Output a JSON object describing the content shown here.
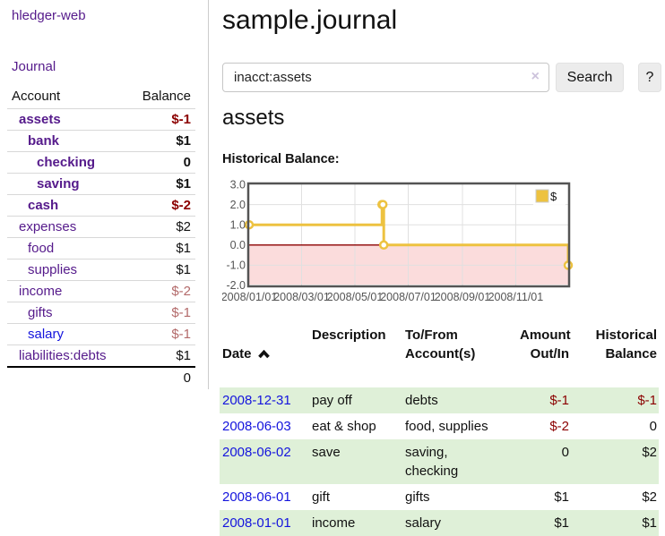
{
  "app": {
    "title": "hledger-web"
  },
  "sidebar": {
    "nav_journal": "Journal",
    "accounts": {
      "col_account": "Account",
      "col_balance": "Balance",
      "rows": [
        {
          "account": "assets",
          "balance": "$-1"
        },
        {
          "account": "bank",
          "balance": "$1"
        },
        {
          "account": "checking",
          "balance": "0"
        },
        {
          "account": "saving",
          "balance": "$1"
        },
        {
          "account": "cash",
          "balance": "$-2"
        },
        {
          "account": "expenses",
          "balance": "$2"
        },
        {
          "account": "food",
          "balance": "$1"
        },
        {
          "account": "supplies",
          "balance": "$1"
        },
        {
          "account": "income",
          "balance": "$-2"
        },
        {
          "account": "gifts",
          "balance": "$-1"
        },
        {
          "account": "salary",
          "balance": "$-1"
        },
        {
          "account": "liabilities:debts",
          "balance": "$1"
        }
      ],
      "total": "0"
    }
  },
  "header": {
    "title": "sample.journal"
  },
  "search": {
    "value": "inacct:assets",
    "clear_icon": "×",
    "search_label": "Search",
    "help_label": "?"
  },
  "account_page": {
    "heading": "assets",
    "chart_label": "Historical Balance:"
  },
  "chart_data": {
    "type": "line",
    "title": "Historical Balance:",
    "step": true,
    "series": [
      {
        "name": "$",
        "points": [
          {
            "date": "2008-01-01",
            "value": 1
          },
          {
            "date": "2008-06-01",
            "value": 2
          },
          {
            "date": "2008-06-02",
            "value": 2
          },
          {
            "date": "2008-06-03",
            "value": 0
          },
          {
            "date": "2008-12-31",
            "value": -1
          }
        ]
      }
    ],
    "x_range": [
      "2008-01-01",
      "2008-12-31"
    ],
    "ylim": [
      -2,
      3
    ],
    "y_ticks": [
      "3.0",
      "2.0",
      "1.0",
      "0.0",
      "-1.0",
      "-2.0"
    ],
    "x_ticks": [
      "2008/01/01",
      "2008/03/01",
      "2008/05/01",
      "2008/07/01",
      "2008/09/01",
      "2008/11/01"
    ],
    "legend": {
      "label": "$",
      "position": "top-right"
    },
    "grid": true,
    "colors": {
      "line": "#edc240",
      "negative_region": "#fbdcdc",
      "zero_line": "#8b0000",
      "gridline": "#e0e0e0",
      "border": "#545454"
    }
  },
  "register": {
    "headers": {
      "date": "Date",
      "description": "Description",
      "to_from": "To/From\nAccount(s)",
      "amount": "Amount\nOut/In",
      "balance": "Historical\nBalance"
    },
    "rows": [
      {
        "date": "2008-12-31",
        "description": "pay off",
        "to_from": "debts",
        "amount": "$-1",
        "balance": "$-1"
      },
      {
        "date": "2008-06-03",
        "description": "eat & shop",
        "to_from": "food, supplies",
        "amount": "$-2",
        "balance": "0"
      },
      {
        "date": "2008-06-02",
        "description": "save",
        "to_from": "saving,\nchecking",
        "amount": "0",
        "balance": "$2"
      },
      {
        "date": "2008-06-01",
        "description": "gift",
        "to_from": "gifts",
        "amount": "$1",
        "balance": "$2"
      },
      {
        "date": "2008-01-01",
        "description": "income",
        "to_from": "salary",
        "amount": "$1",
        "balance": "$1"
      }
    ]
  }
}
